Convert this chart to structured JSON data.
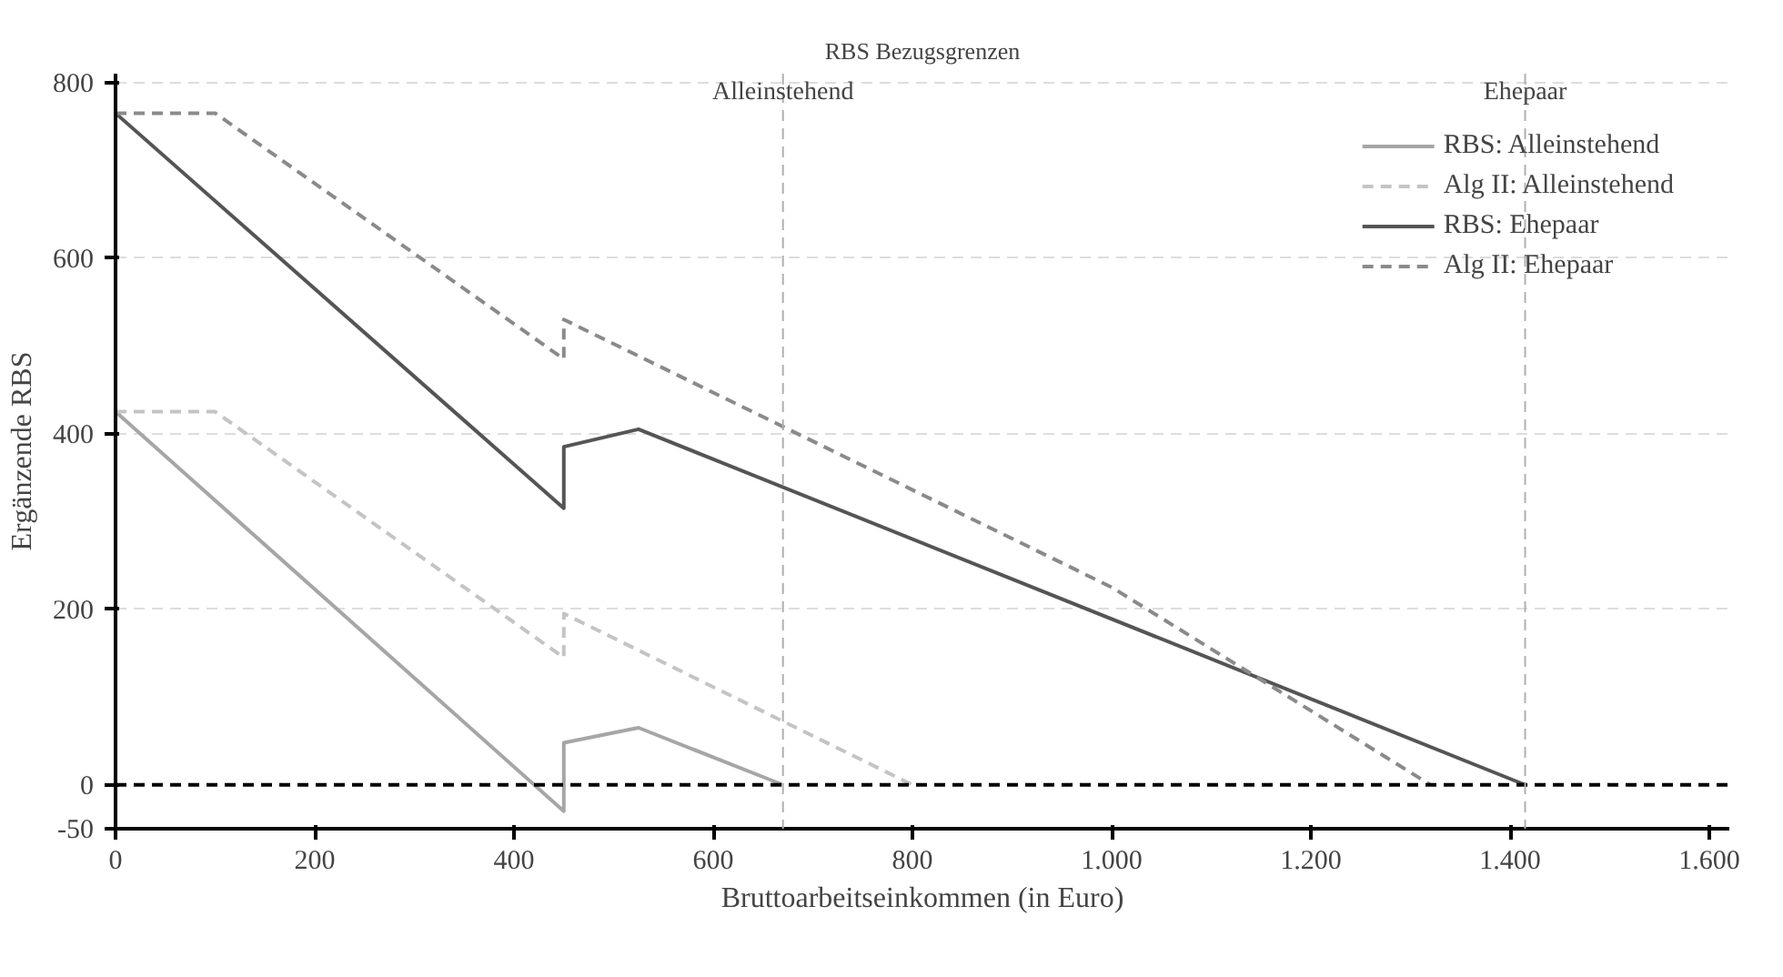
{
  "chart_data": {
    "type": "line",
    "title": "RBS Bezugsgrenzen",
    "xlabel": "Bruttoarbeitseinkommen (in Euro)",
    "ylabel": "Ergänzende RBS",
    "xlim": [
      0,
      1620
    ],
    "ylim": [
      -50,
      810
    ],
    "xticks": [
      0,
      200,
      400,
      600,
      800,
      {
        "value": 1000,
        "label": "1.000"
      },
      {
        "value": 1200,
        "label": "1.200"
      },
      {
        "value": 1400,
        "label": "1.400"
      },
      {
        "value": 1600,
        "label": "1.600"
      }
    ],
    "yticks": [
      -50,
      0,
      200,
      400,
      600,
      800
    ],
    "grid": "y",
    "legend": "top right",
    "series": [
      {
        "name": "RBS: Alleinstehend",
        "color": "#a6a6a6",
        "line_style": "solid",
        "x": [
          0,
          450,
          450,
          525,
          670
        ],
        "values": [
          425,
          -30,
          48,
          65,
          0
        ]
      },
      {
        "name": "Alg II: Alleinstehend",
        "color": "#c4c4c4",
        "line_style": "dashed",
        "x": [
          0,
          100,
          450,
          450,
          800
        ],
        "values": [
          425,
          425,
          145,
          195,
          0
        ]
      },
      {
        "name": "RBS: Ehepaar",
        "color": "#555555",
        "line_style": "solid",
        "x": [
          0,
          450,
          450,
          525,
          1415
        ],
        "values": [
          765,
          315,
          385,
          405,
          0
        ]
      },
      {
        "name": "Alg II: Ehepaar",
        "color": "#8a8a8a",
        "line_style": "dashed",
        "x": [
          0,
          100,
          450,
          450,
          1000,
          1320
        ],
        "values": [
          765,
          765,
          485,
          530,
          225,
          0
        ]
      }
    ],
    "ref_lines": [
      {
        "axis": "y",
        "value": 0,
        "color": "#000000",
        "line_style": "dashed"
      },
      {
        "axis": "x",
        "value": 670,
        "label": "Alleinstehend",
        "color": "#b0b0b0",
        "line_style": "dashed"
      },
      {
        "axis": "x",
        "value": 1415,
        "label": "Ehepaar",
        "color": "#b0b0b0",
        "line_style": "dashed"
      }
    ]
  }
}
